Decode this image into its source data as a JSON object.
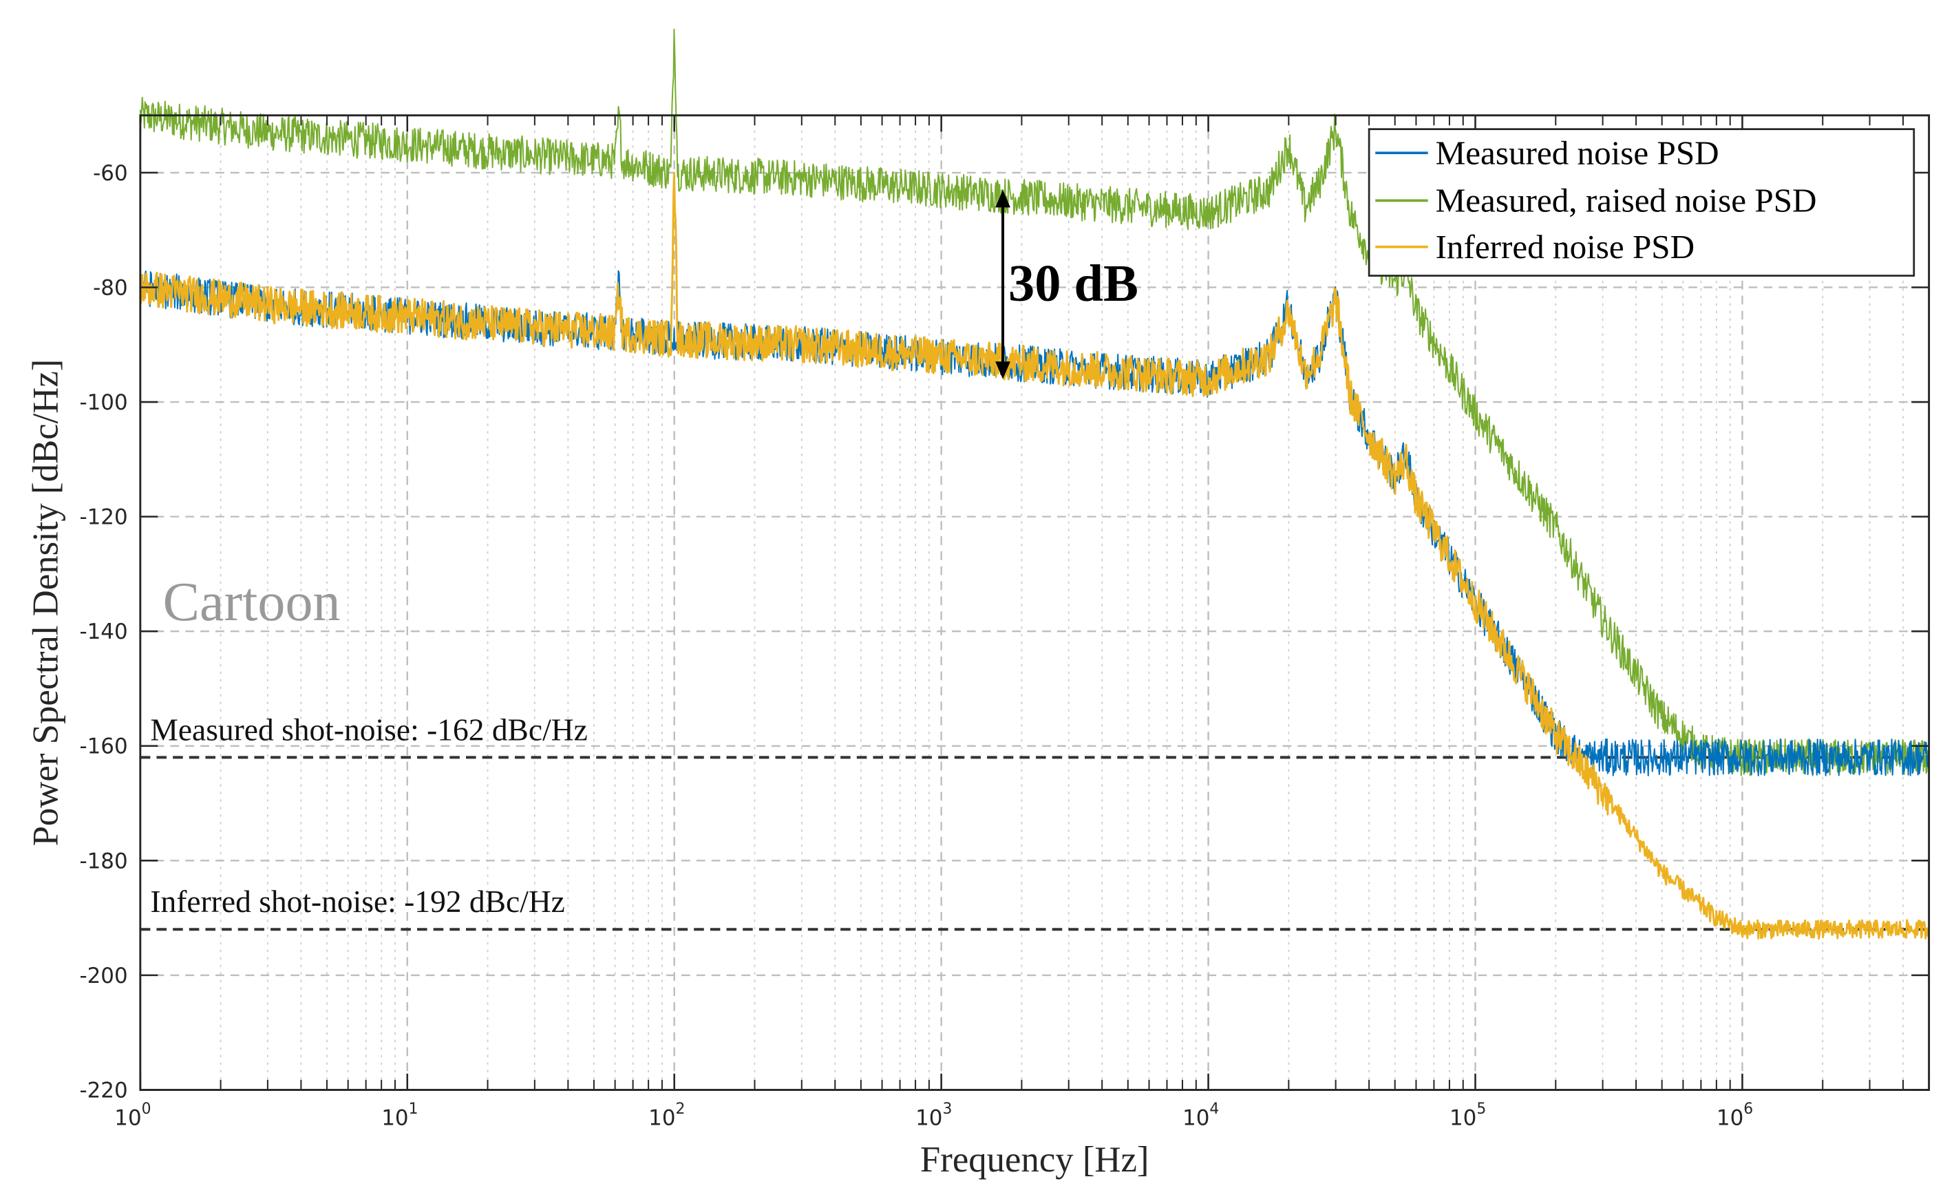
{
  "chart_data": {
    "type": "line",
    "xlabel": "Frequency [Hz]",
    "ylabel": "Power Spectral Density [dBc/Hz]",
    "xscale": "log",
    "xlim": [
      1,
      5000000
    ],
    "ylim": [
      -220,
      -50
    ],
    "grid": true,
    "legend_position": "top-right",
    "x_ticks": [
      {
        "base": "10",
        "exp": "0"
      },
      {
        "base": "10",
        "exp": "1"
      },
      {
        "base": "10",
        "exp": "2"
      },
      {
        "base": "10",
        "exp": "3"
      },
      {
        "base": "10",
        "exp": "4"
      },
      {
        "base": "10",
        "exp": "5"
      },
      {
        "base": "10",
        "exp": "6"
      }
    ],
    "y_ticks": [
      "-60",
      "-80",
      "-100",
      "-120",
      "-140",
      "-160",
      "-180",
      "-200",
      "-220"
    ],
    "series": [
      {
        "name": "Measured noise PSD",
        "color": "#0072BD",
        "x": [
          1,
          3,
          10,
          30,
          60,
          62,
          64,
          100,
          300,
          1000,
          3000,
          10000,
          17000,
          20000,
          23000,
          26000,
          30000,
          34000,
          40000,
          50000,
          55000,
          60000,
          100000,
          150000,
          200000,
          250000,
          1000000,
          5000000
        ],
        "y": [
          -80,
          -83,
          -85,
          -87,
          -88,
          -79,
          -88,
          -89,
          -90,
          -92,
          -94,
          -96,
          -92,
          -83,
          -95,
          -92,
          -81,
          -99,
          -106,
          -113,
          -109,
          -117,
          -135,
          -148,
          -158,
          -162,
          -162,
          -162
        ]
      },
      {
        "name": "Measured, raised noise PSD",
        "color": "#77AC30",
        "x": [
          1,
          3,
          10,
          30,
          60,
          62,
          64,
          97,
          100,
          103,
          300,
          1000,
          3000,
          10000,
          17000,
          20000,
          23000,
          26000,
          30000,
          34000,
          40000,
          50000,
          55000,
          60000,
          100000,
          200000,
          300000,
          500000,
          700000,
          1000000,
          5000000
        ],
        "y": [
          -50,
          -53,
          -55,
          -57,
          -58,
          -50,
          -58,
          -60,
          -34,
          -60,
          -61,
          -63,
          -65,
          -67,
          -63,
          -55,
          -66,
          -62,
          -52,
          -67,
          -74,
          -79,
          -77,
          -84,
          -102,
          -122,
          -138,
          -155,
          -161,
          -162,
          -162
        ]
      },
      {
        "name": "Inferred noise PSD",
        "color": "#EDB120",
        "x": [
          1,
          3,
          10,
          30,
          60,
          62,
          64,
          97,
          100,
          103,
          300,
          1000,
          3000,
          10000,
          17000,
          20000,
          23000,
          26000,
          30000,
          34000,
          40000,
          50000,
          55000,
          60000,
          100000,
          150000,
          200000,
          300000,
          500000,
          800000,
          1000000,
          5000000
        ],
        "y": [
          -80,
          -83,
          -85,
          -87,
          -88,
          -80,
          -88,
          -89,
          -60,
          -89,
          -90,
          -92,
          -94,
          -96,
          -92,
          -84,
          -95,
          -92,
          -82,
          -99,
          -106,
          -113,
          -110,
          -117,
          -135,
          -148,
          -158,
          -168,
          -182,
          -190,
          -192,
          -192
        ]
      }
    ],
    "reference_lines": [
      {
        "y": -162,
        "label": "Measured shot-noise: -162 dBc/Hz"
      },
      {
        "y": -192,
        "label": "Inferred shot-noise: -192 dBc/Hz"
      }
    ],
    "annotations": {
      "arrow": {
        "x": 1700,
        "y_from": -63,
        "y_to": -96,
        "label": "30 dB"
      },
      "watermark": "Cartoon"
    }
  }
}
